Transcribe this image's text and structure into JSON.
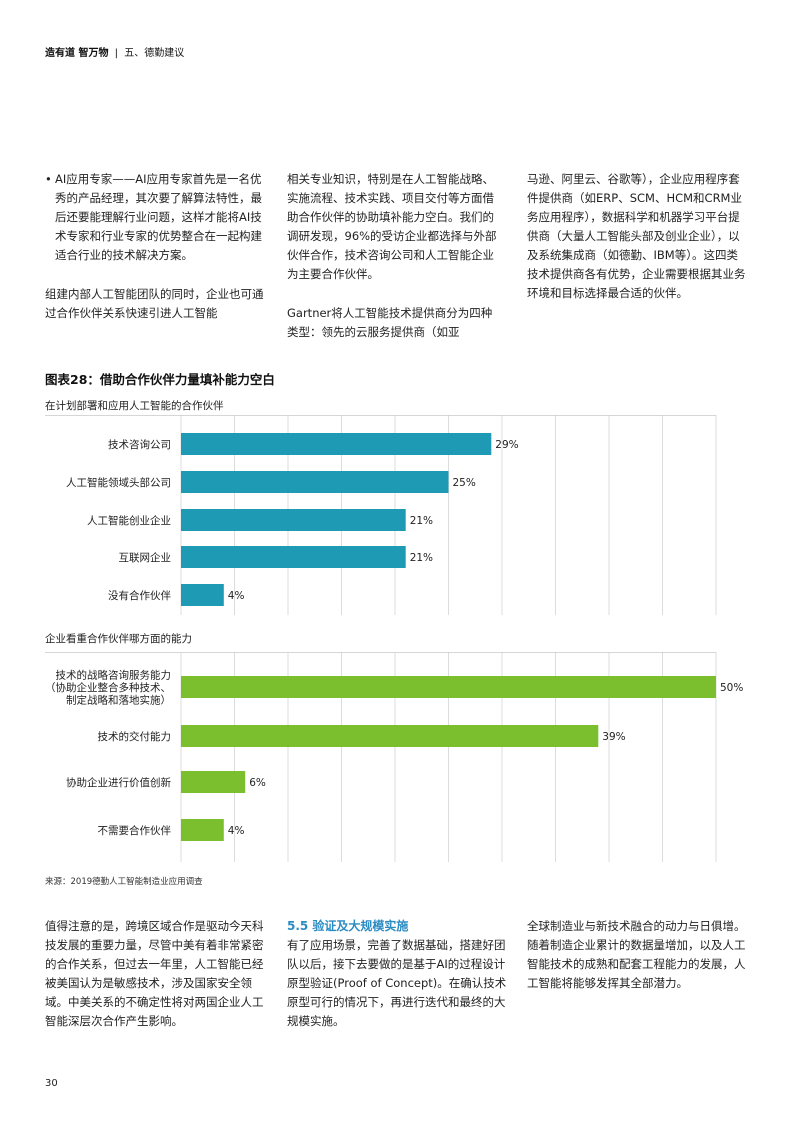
{
  "header": {
    "brand": "造有道 智万物",
    "separator": "|",
    "section": "五、德勤建议"
  },
  "top_text": {
    "col1_bullet": "AI应用专家——AI应用专家首先是一名优秀的产品经理，其次要了解算法特性，最后还要能理解行业问题，这样才能将AI技术专家和行业专家的优势整合在一起构建适合行业的技术解决方案。",
    "col1_para": "组建内部人工智能团队的同时，企业也可通过合作伙伴关系快速引进人工智能",
    "col2_para1": "相关专业知识，特别是在人工智能战略、实施流程、技术实践、项目交付等方面借助合作伙伴的协助填补能力空白。我们的调研发现，96%的受访企业都选择与外部伙伴合作，技术咨询公司和人工智能企业为主要合作伙伴。",
    "col2_para2": "Gartner将人工智能技术提供商分为四种类型：领先的云服务提供商（如亚",
    "col3_para": "马逊、阿里云、谷歌等），企业应用程序套件提供商（如ERP、SCM、HCM和CRM业务应用程序），数据科学和机器学习平台提供商（大量人工智能头部及创业企业），以及系统集成商（如德勤、IBM等）。这四类技术提供商各有优势，企业需要根据其业务环境和目标选择最合适的伙伴。"
  },
  "figure": {
    "title": "图表28：借助合作伙伴力量填补能力空白",
    "source": "来源：2019德勤人工智能制造业应用调查"
  },
  "chart_data": [
    {
      "type": "bar",
      "orientation": "horizontal",
      "title": "在计划部署和应用人工智能的合作伙伴",
      "categories": [
        "技术咨询公司",
        "人工智能领域头部公司",
        "人工智能创业企业",
        "互联网企业",
        "没有合作伙伴"
      ],
      "values": [
        29,
        25,
        21,
        21,
        4
      ],
      "value_labels": [
        "29%",
        "25%",
        "21%",
        "21%",
        "4%"
      ],
      "unit": "%",
      "color": "#1e9ab5",
      "xlim": [
        0,
        50
      ],
      "grid": true
    },
    {
      "type": "bar",
      "orientation": "horizontal",
      "title": "企业看重合作伙伴哪方面的能力",
      "categories": [
        [
          "技术的战略咨询服务能力",
          "（协助企业整合多种技术、",
          "制定战略和落地实施）"
        ],
        [
          "技术的交付能力"
        ],
        [
          "协助企业进行价值创新"
        ],
        [
          "不需要合作伙伴"
        ]
      ],
      "values": [
        50,
        39,
        6,
        4
      ],
      "value_labels": [
        "50%",
        "39%",
        "6%",
        "4%"
      ],
      "unit": "%",
      "color": "#7bbf2e",
      "xlim": [
        0,
        50
      ],
      "grid": true
    }
  ],
  "bottom_text": {
    "col1": "值得注意的是，跨境区域合作是驱动今天科技发展的重要力量，尽管中美有着非常紧密的合作关系，但过去一年里，人工智能已经被美国认为是敏感技术，涉及国家安全领域。中美关系的不确定性将对两国企业人工智能深层次合作产生影响。",
    "col2_head": "5.5 验证及大规模实施",
    "col2": "有了应用场景，完善了数据基础，搭建好团队以后，接下去要做的是基于AI的过程设计原型验证(Proof of Concept)。在确认技术原型可行的情况下，再进行迭代和最终的大规模实施。",
    "col3": "全球制造业与新技术融合的动力与日俱增。随着制造企业累计的数据量增加，以及人工智能技术的成熟和配套工程能力的发展，人工智能将能够发挥其全部潜力。"
  },
  "page_number": "30"
}
